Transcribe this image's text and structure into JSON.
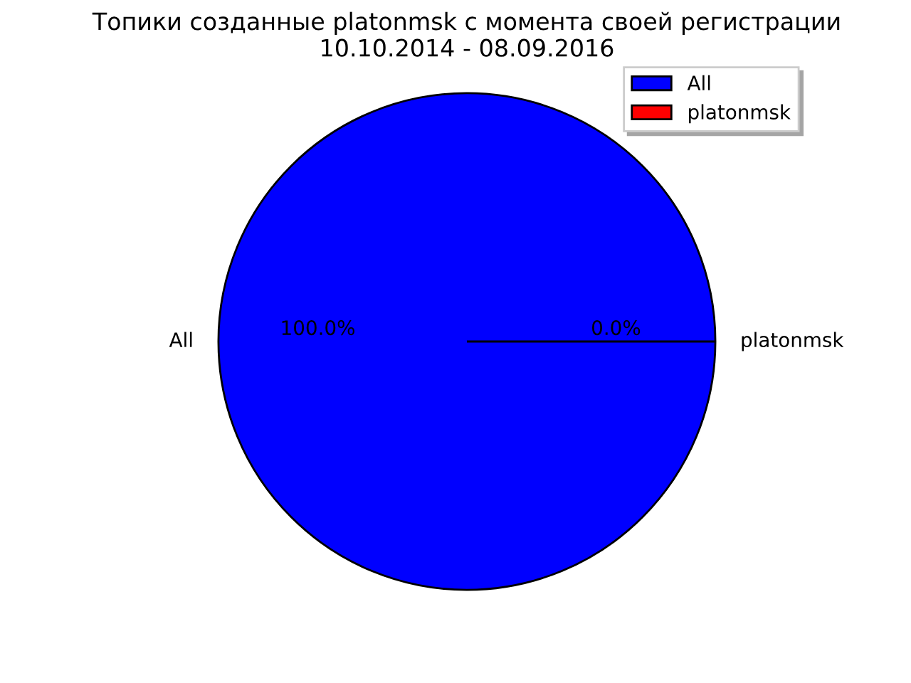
{
  "chart_data": {
    "type": "pie",
    "title": "Топики созданные platonmsk с момента своей регистрации\n10.10.2014 - 08.09.2016",
    "categories": [
      "All",
      "platonmsk"
    ],
    "values": [
      100,
      0
    ],
    "colors": [
      "#0000ff",
      "#ff0000"
    ],
    "value_labels": [
      "100.0%",
      "0.0%"
    ],
    "legend": "top right"
  }
}
